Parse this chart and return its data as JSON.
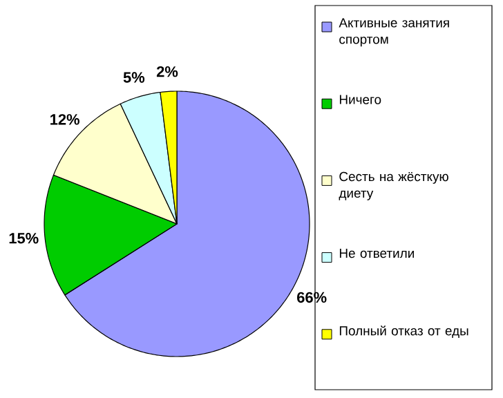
{
  "chart_data": {
    "type": "pie",
    "categories": [
      "Активные занятия спортом",
      "Ничего",
      "Сесть на жёсткую диету",
      "Не ответили",
      "Полный отказ от еды"
    ],
    "values": [
      66,
      15,
      12,
      5,
      2
    ],
    "colors": [
      "#9999ff",
      "#00cc00",
      "#ffffcc",
      "#ccffff",
      "#ffff00"
    ],
    "value_labels": [
      "66%",
      "15%",
      "12%",
      "5%",
      "2%"
    ],
    "legend": "right"
  }
}
